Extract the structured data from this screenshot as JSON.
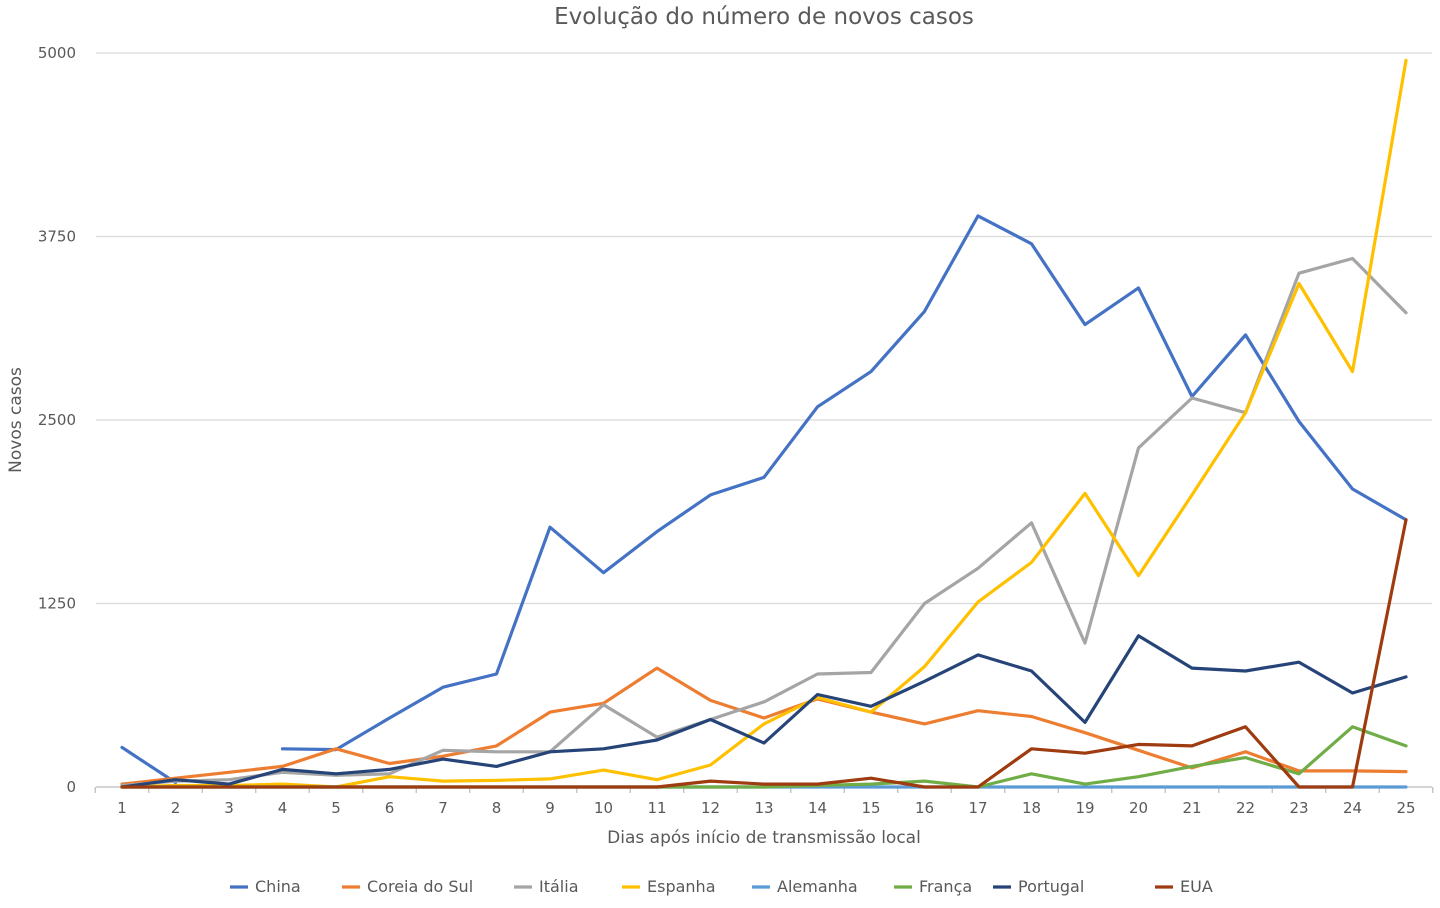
{
  "chart_data": {
    "type": "line",
    "title": "Evolução do número de novos casos",
    "xlabel": "Dias após início de transmissão local",
    "ylabel": "Novos casos",
    "ylim": [
      0,
      5000
    ],
    "yticks": [
      0,
      1250,
      2500,
      3750,
      5000
    ],
    "x": [
      1,
      2,
      3,
      4,
      5,
      6,
      7,
      8,
      9,
      10,
      11,
      12,
      13,
      14,
      15,
      16,
      17,
      18,
      19,
      20,
      21,
      22,
      23,
      24,
      25
    ],
    "grid": true,
    "legend_position": "bottom",
    "series": [
      {
        "name": "China",
        "color": "#4472C4",
        "values": [
          270,
          30,
          null,
          260,
          255,
          470,
          680,
          770,
          1770,
          1460,
          1740,
          1990,
          2110,
          2590,
          2830,
          3240,
          3890,
          3700,
          3150,
          3400,
          2660,
          3080,
          2490,
          2030,
          1820
        ]
      },
      {
        "name": "Coreia do Sul",
        "color": "#ED7D31",
        "values": [
          20,
          60,
          100,
          140,
          260,
          160,
          210,
          280,
          510,
          570,
          810,
          590,
          470,
          600,
          510,
          430,
          520,
          480,
          370,
          250,
          130,
          240,
          110,
          110,
          105
        ]
      },
      {
        "name": "Itália",
        "color": "#A5A5A5",
        "values": [
          10,
          40,
          50,
          100,
          80,
          90,
          250,
          240,
          240,
          560,
          340,
          460,
          580,
          770,
          780,
          1250,
          1490,
          1800,
          980,
          2310,
          2650,
          2550,
          3500,
          3600,
          3230
        ]
      },
      {
        "name": "Espanha",
        "color": "#FFC000",
        "values": [
          0,
          10,
          10,
          20,
          0,
          70,
          40,
          45,
          55,
          115,
          50,
          150,
          430,
          610,
          510,
          820,
          1260,
          1530,
          2000,
          1440,
          1990,
          2550,
          3430,
          2830,
          4950
        ]
      },
      {
        "name": "Alemanha",
        "color": "#5B9BD5",
        "values": [
          0,
          0,
          0,
          0,
          0,
          0,
          0,
          0,
          0,
          0,
          0,
          0,
          0,
          0,
          0,
          0,
          0,
          0,
          0,
          0,
          0,
          0,
          0,
          0,
          0
        ]
      },
      {
        "name": "França",
        "color": "#70AD47",
        "values": [
          0,
          0,
          0,
          0,
          0,
          0,
          0,
          0,
          0,
          0,
          0,
          0,
          0,
          10,
          20,
          40,
          0,
          90,
          20,
          70,
          140,
          200,
          90,
          410,
          280
        ]
      },
      {
        "name": "Portugal",
        "color": "#264478",
        "values": [
          0,
          50,
          20,
          120,
          90,
          120,
          190,
          140,
          240,
          260,
          320,
          460,
          300,
          630,
          550,
          720,
          900,
          790,
          440,
          1030,
          810,
          790,
          850,
          640,
          750
        ]
      },
      {
        "name": "EUA",
        "color": "#9E3B10",
        "values": [
          0,
          0,
          0,
          0,
          0,
          0,
          0,
          0,
          0,
          0,
          0,
          40,
          20,
          20,
          60,
          0,
          0,
          260,
          230,
          290,
          280,
          410,
          0,
          0,
          1820
        ]
      }
    ]
  }
}
